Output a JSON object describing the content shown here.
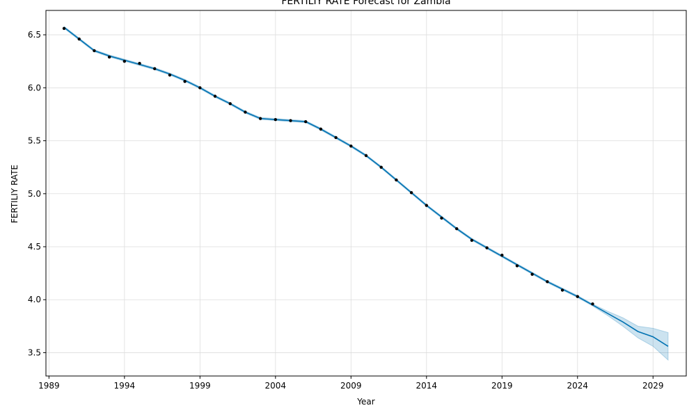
{
  "chart_data": {
    "type": "line",
    "title": "FERTILIY RATE Forecast for Zambia",
    "xlabel": "Year",
    "ylabel": "FERTILIY RATE",
    "xlim": [
      1988.8,
      2031.2
    ],
    "ylim": [
      3.28,
      6.73
    ],
    "grid": true,
    "x_ticks": [
      1989,
      1994,
      1999,
      2004,
      2009,
      2014,
      2019,
      2024,
      2029
    ],
    "y_ticks": [
      3.5,
      4.0,
      4.5,
      5.0,
      5.5,
      6.0,
      6.5
    ],
    "colors": {
      "forecast": "#0072B2",
      "band": "#0072B2",
      "observed": "#000000",
      "grid": "#dddddd"
    },
    "observed": {
      "x": [
        1990,
        1991,
        1992,
        1993,
        1994,
        1995,
        1996,
        1997,
        1998,
        1999,
        2000,
        2001,
        2002,
        2003,
        2004,
        2005,
        2006,
        2007,
        2008,
        2009,
        2010,
        2011,
        2012,
        2013,
        2014,
        2015,
        2016,
        2017,
        2018,
        2019,
        2020,
        2021,
        2022,
        2023,
        2024,
        2025
      ],
      "y": [
        6.56,
        6.46,
        6.35,
        6.29,
        6.25,
        6.23,
        6.18,
        6.12,
        6.06,
        6.0,
        5.92,
        5.85,
        5.77,
        5.71,
        5.7,
        5.69,
        5.68,
        5.61,
        5.53,
        5.45,
        5.36,
        5.25,
        5.13,
        5.01,
        4.89,
        4.77,
        4.67,
        4.56,
        4.49,
        4.42,
        4.32,
        4.24,
        4.17,
        4.09,
        4.03,
        3.96
      ]
    },
    "forecast": {
      "x": [
        1990,
        1991,
        1992,
        1993,
        1994,
        1995,
        1996,
        1997,
        1998,
        1999,
        2000,
        2001,
        2002,
        2003,
        2004,
        2005,
        2006,
        2007,
        2008,
        2009,
        2010,
        2011,
        2012,
        2013,
        2014,
        2015,
        2016,
        2017,
        2018,
        2019,
        2020,
        2021,
        2022,
        2023,
        2024,
        2025,
        2026,
        2027,
        2028,
        2029,
        2030
      ],
      "y": [
        6.57,
        6.46,
        6.35,
        6.3,
        6.26,
        6.22,
        6.18,
        6.13,
        6.07,
        6.0,
        5.92,
        5.85,
        5.77,
        5.71,
        5.7,
        5.69,
        5.68,
        5.61,
        5.53,
        5.45,
        5.36,
        5.25,
        5.13,
        5.01,
        4.89,
        4.78,
        4.67,
        4.57,
        4.49,
        4.41,
        4.33,
        4.25,
        4.17,
        4.1,
        4.03,
        3.95,
        3.87,
        3.79,
        3.7,
        3.65,
        3.56
      ],
      "lower": [
        6.56,
        6.45,
        6.34,
        6.29,
        6.25,
        6.21,
        6.17,
        6.12,
        6.06,
        5.99,
        5.91,
        5.84,
        5.76,
        5.7,
        5.69,
        5.68,
        5.67,
        5.6,
        5.52,
        5.44,
        5.35,
        5.24,
        5.12,
        5.0,
        4.88,
        4.77,
        4.66,
        4.56,
        4.48,
        4.4,
        4.32,
        4.24,
        4.16,
        4.09,
        4.02,
        3.94,
        3.85,
        3.75,
        3.64,
        3.56,
        3.43
      ],
      "upper": [
        6.58,
        6.47,
        6.36,
        6.31,
        6.27,
        6.23,
        6.19,
        6.14,
        6.08,
        6.01,
        5.93,
        5.86,
        5.78,
        5.72,
        5.71,
        5.7,
        5.69,
        5.62,
        5.54,
        5.46,
        5.37,
        5.26,
        5.14,
        5.02,
        4.9,
        4.79,
        4.68,
        4.58,
        4.5,
        4.42,
        4.34,
        4.26,
        4.18,
        4.11,
        4.04,
        3.96,
        3.89,
        3.83,
        3.75,
        3.73,
        3.69
      ]
    }
  }
}
